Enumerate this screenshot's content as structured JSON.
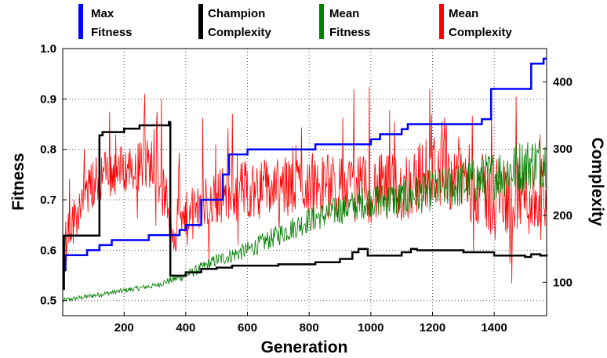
{
  "chart_data": {
    "type": "line",
    "xlabel": "Generation",
    "ylabel_left": "Fitness",
    "ylabel_right": "Complexity",
    "xlim": [
      1,
      1570
    ],
    "ylim_left": [
      0.47,
      1.0
    ],
    "ylim_right": [
      50,
      450
    ],
    "x_ticks": [
      200,
      400,
      600,
      800,
      1000,
      1200,
      1400
    ],
    "y_ticks_left": [
      "0.5",
      "0.6",
      "0.7",
      "0.8",
      "0.9",
      "1.0"
    ],
    "y_ticks_right": [
      100,
      200,
      300,
      400
    ],
    "grid": true,
    "legend_position": "top",
    "series": [
      {
        "name": "Max\nFitness",
        "axis": "left",
        "color": "#0000ff",
        "style": "step",
        "x": [
          1,
          10,
          80,
          120,
          160,
          280,
          380,
          400,
          450,
          520,
          540,
          600,
          700,
          800,
          820,
          1000,
          1030,
          1100,
          1120,
          1200,
          1360,
          1390,
          1500,
          1520,
          1560,
          1570
        ],
        "y": [
          0.56,
          0.59,
          0.6,
          0.61,
          0.62,
          0.63,
          0.64,
          0.65,
          0.7,
          0.75,
          0.79,
          0.8,
          0.8,
          0.8,
          0.81,
          0.82,
          0.83,
          0.84,
          0.85,
          0.85,
          0.86,
          0.92,
          0.92,
          0.97,
          0.98,
          0.98
        ]
      },
      {
        "name": "Champion\nComplexity",
        "axis": "right",
        "color": "#000000",
        "style": "step",
        "x": [
          1,
          5,
          120,
          130,
          200,
          250,
          345,
          350,
          400,
          450,
          500,
          550,
          700,
          820,
          900,
          940,
          960,
          990,
          1100,
          1130,
          1150,
          1300,
          1400,
          1500,
          1520,
          1550,
          1570
        ],
        "y": [
          90,
          170,
          320,
          325,
          330,
          335,
          340,
          110,
          115,
          120,
          122,
          125,
          127,
          130,
          135,
          145,
          150,
          140,
          145,
          150,
          148,
          145,
          140,
          138,
          142,
          140,
          142
        ]
      },
      {
        "name": "Mean\nFitness",
        "axis": "left",
        "color": "#008000",
        "style": "noisy",
        "x": [
          1,
          100,
          200,
          300,
          400,
          500,
          600,
          700,
          800,
          900,
          1000,
          1100,
          1200,
          1300,
          1400,
          1500,
          1570
        ],
        "y": [
          0.5,
          0.51,
          0.52,
          0.53,
          0.55,
          0.58,
          0.6,
          0.63,
          0.66,
          0.68,
          0.7,
          0.7,
          0.72,
          0.73,
          0.75,
          0.77,
          0.78
        ]
      },
      {
        "name": "Mean\nComplexity",
        "axis": "right",
        "color": "#ff0000",
        "style": "noisy",
        "x": [
          1,
          60,
          120,
          200,
          300,
          360,
          420,
          500,
          600,
          700,
          800,
          900,
          1000,
          1100,
          1200,
          1300,
          1400,
          1500,
          1570
        ],
        "y": [
          150,
          220,
          260,
          270,
          280,
          180,
          200,
          230,
          240,
          240,
          250,
          240,
          240,
          240,
          270,
          260,
          220,
          230,
          220
        ]
      }
    ]
  }
}
